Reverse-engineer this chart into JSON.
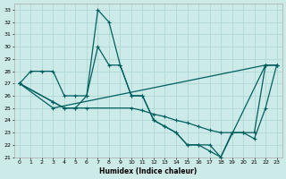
{
  "xlabel": "Humidex (Indice chaleur)",
  "xlim": [
    -0.5,
    23.5
  ],
  "ylim": [
    21,
    33.5
  ],
  "xticks": [
    0,
    1,
    2,
    3,
    4,
    5,
    6,
    7,
    8,
    9,
    10,
    11,
    12,
    13,
    14,
    15,
    16,
    17,
    18,
    19,
    20,
    21,
    22,
    23
  ],
  "yticks": [
    21,
    22,
    23,
    24,
    25,
    26,
    27,
    28,
    29,
    30,
    31,
    32,
    33
  ],
  "bg_color": "#cceae7",
  "grid_color": "#b0d8d4",
  "line_color": "#006060",
  "series": [
    {
      "x": [
        0,
        1,
        2,
        3,
        4,
        5,
        6,
        7,
        8,
        9,
        10,
        11,
        12,
        13,
        14,
        15,
        16,
        17,
        18,
        19,
        20,
        21,
        22,
        23
      ],
      "y": [
        27,
        28,
        28,
        28,
        26,
        26,
        26,
        33,
        32,
        28.5,
        26,
        26,
        24,
        23.5,
        23,
        22,
        22,
        22,
        21,
        23,
        23,
        22.5,
        25,
        28.5
      ]
    },
    {
      "x": [
        0,
        3,
        4,
        5,
        6,
        7,
        8,
        9,
        10,
        11,
        12,
        13,
        14,
        15,
        16,
        17,
        18,
        22,
        23
      ],
      "y": [
        27,
        25.5,
        25,
        25,
        26,
        30,
        28.5,
        28.5,
        26,
        26,
        24,
        23.5,
        23,
        22,
        22,
        21.5,
        21,
        28.5,
        28.5
      ]
    },
    {
      "x": [
        0,
        3,
        4,
        5,
        6,
        10,
        11,
        12,
        13,
        14,
        15,
        16,
        17,
        18,
        19,
        20,
        21,
        22,
        23
      ],
      "y": [
        27,
        25.5,
        25,
        25,
        25,
        25,
        24.8,
        24.5,
        24.3,
        24,
        23.8,
        23.5,
        23.2,
        23,
        23,
        23,
        23,
        28.5,
        28.5
      ]
    },
    {
      "x": [
        0,
        3,
        22,
        23
      ],
      "y": [
        27,
        25,
        28.5,
        28.5
      ]
    }
  ]
}
